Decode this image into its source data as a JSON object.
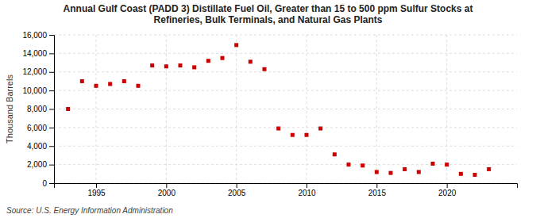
{
  "chart_data": {
    "type": "scatter",
    "title": "Annual Gulf Coast (PADD 3) Distillate Fuel Oil, Greater than 15 to 500 ppm Sulfur Stocks at\nRefineries, Bulk Terminals, and Natural Gas Plants",
    "ylabel": "Thousand Barrels",
    "source": "Source: U.S. Energy Information Administration",
    "color": "#cc0000",
    "marker": "square",
    "grid": true,
    "x": [
      1993,
      1994,
      1995,
      1996,
      1997,
      1998,
      1999,
      2000,
      2001,
      2002,
      2003,
      2004,
      2005,
      2006,
      2007,
      2008,
      2009,
      2010,
      2011,
      2012,
      2013,
      2014,
      2015,
      2016,
      2017,
      2018,
      2019,
      2020,
      2021,
      2022,
      2023
    ],
    "values": [
      8000,
      11000,
      10500,
      10700,
      11000,
      10500,
      12700,
      12600,
      12700,
      12500,
      13200,
      13500,
      14900,
      13100,
      12300,
      5900,
      5200,
      5200,
      5900,
      3100,
      2000,
      1900,
      1200,
      1100,
      1500,
      1200,
      2100,
      2000,
      1000,
      900,
      1500
    ],
    "xlim": [
      1992,
      2025
    ],
    "xticks": [
      1995,
      2000,
      2005,
      2010,
      2015,
      2020
    ],
    "ylim": [
      0,
      16000
    ],
    "yticks": [
      0,
      {
        "value": 2000,
        "label": "2,000"
      },
      {
        "value": 4000,
        "label": "4,000"
      },
      {
        "value": 6000,
        "label": "6,000"
      },
      {
        "value": 8000,
        "label": "8,000"
      },
      {
        "value": 10000,
        "label": "10,000"
      },
      {
        "value": 12000,
        "label": "12,000"
      },
      {
        "value": 14000,
        "label": "14,000"
      },
      {
        "value": 16000,
        "label": "16,000"
      }
    ]
  }
}
